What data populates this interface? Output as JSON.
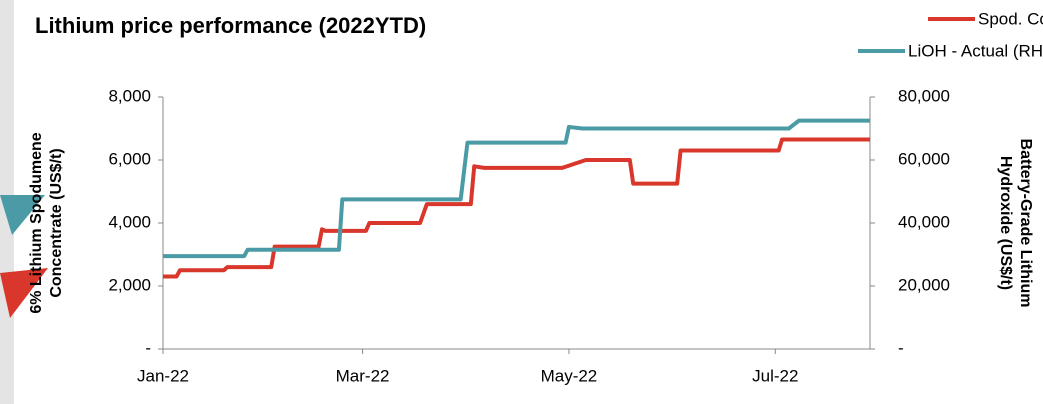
{
  "chart_data": {
    "type": "line",
    "title": "Lithium price performance (2022YTD)",
    "ylabel": [
      "6% Lithium Spodumene",
      "Concentrate (US$/t)"
    ],
    "y2label": [
      "Battery-Grade Lithium",
      "Hydroxide (US$/t)"
    ],
    "legend": "top-right",
    "xlim": [
      0,
      209
    ],
    "xticks": [
      {
        "value": 0,
        "label": "Jan-22"
      },
      {
        "value": 59,
        "label": "Mar-22"
      },
      {
        "value": 120,
        "label": "May-22"
      },
      {
        "value": 181,
        "label": "Jul-22"
      }
    ],
    "ylim": [
      0,
      8000
    ],
    "yticks": [
      {
        "value": 0,
        "label": "-"
      },
      {
        "value": 2000,
        "label": "2,000"
      },
      {
        "value": 4000,
        "label": "4,000"
      },
      {
        "value": 6000,
        "label": "6,000"
      },
      {
        "value": 8000,
        "label": "8,000"
      }
    ],
    "y2lim": [
      0,
      80000
    ],
    "y2ticks": [
      {
        "value": 0,
        "label": "-"
      },
      {
        "value": 20000,
        "label": "20,000"
      },
      {
        "value": 40000,
        "label": "40,000"
      },
      {
        "value": 60000,
        "label": "60,000"
      },
      {
        "value": 80000,
        "label": "80,000"
      }
    ],
    "series": [
      {
        "name": "Spod. Concentrate - Actual (LHS)",
        "color": "#d9372b",
        "x": [
          0,
          4,
          5,
          18,
          19,
          32,
          33,
          46,
          47,
          48,
          60,
          61,
          76,
          78,
          91,
          92,
          95,
          118,
          125,
          138,
          139,
          152,
          153,
          182,
          183,
          209
        ],
        "values": [
          2300,
          2300,
          2500,
          2500,
          2600,
          2600,
          3250,
          3250,
          3800,
          3750,
          3750,
          4000,
          4000,
          4600,
          4600,
          5800,
          5750,
          5750,
          6000,
          6000,
          5250,
          5250,
          6300,
          6300,
          6650,
          6650
        ]
      },
      {
        "name": "LiOH - Actual (RHS)",
        "color": "#4a9ba6",
        "axis": "y2",
        "x": [
          0,
          24,
          25,
          52,
          53,
          88,
          90,
          119,
          120,
          124,
          185,
          188,
          209
        ],
        "values": [
          29500,
          29500,
          31500,
          31500,
          47500,
          47500,
          65500,
          65500,
          70500,
          70000,
          70000,
          72500,
          72500
        ]
      }
    ]
  }
}
